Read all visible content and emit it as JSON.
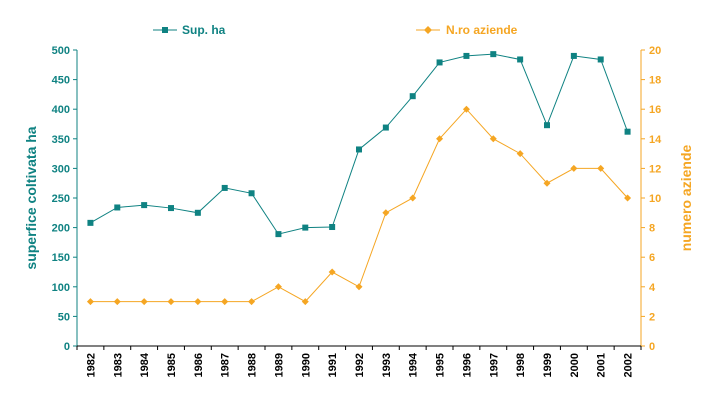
{
  "chart_data": {
    "type": "line",
    "categories": [
      "1982",
      "1983",
      "1984",
      "1985",
      "1986",
      "1987",
      "1988",
      "1989",
      "1990",
      "1991",
      "1992",
      "1993",
      "1994",
      "1995",
      "1996",
      "1997",
      "1998",
      "1999",
      "2000",
      "2001",
      "2002"
    ],
    "series": [
      {
        "name": "Sup. ha",
        "axis": "left",
        "color": "#0f8282",
        "marker": "square",
        "values": [
          208,
          234,
          238,
          233,
          225,
          267,
          258,
          189,
          200,
          201,
          332,
          369,
          422,
          479,
          490,
          493,
          484,
          373,
          490,
          484,
          362
        ]
      },
      {
        "name": "N.ro aziende",
        "axis": "right",
        "color": "#f5a623",
        "marker": "diamond",
        "values": [
          3,
          3,
          3,
          3,
          3,
          3,
          3,
          4,
          3,
          5,
          4,
          9,
          10,
          14,
          16,
          14,
          13,
          11,
          12,
          12,
          10
        ]
      }
    ],
    "y_left": {
      "label": "superfice coltivata ha",
      "ticks": [
        "0",
        "50",
        "100",
        "150",
        "200",
        "250",
        "300",
        "350",
        "400",
        "450",
        "500"
      ],
      "lim": [
        0,
        500
      ]
    },
    "y_right": {
      "label": "numero aziende",
      "ticks": [
        "0",
        "2",
        "4",
        "6",
        "8",
        "10",
        "12",
        "14",
        "16",
        "18",
        "20"
      ],
      "lim": [
        0,
        20
      ]
    },
    "grid": false,
    "legend_position": "top"
  }
}
